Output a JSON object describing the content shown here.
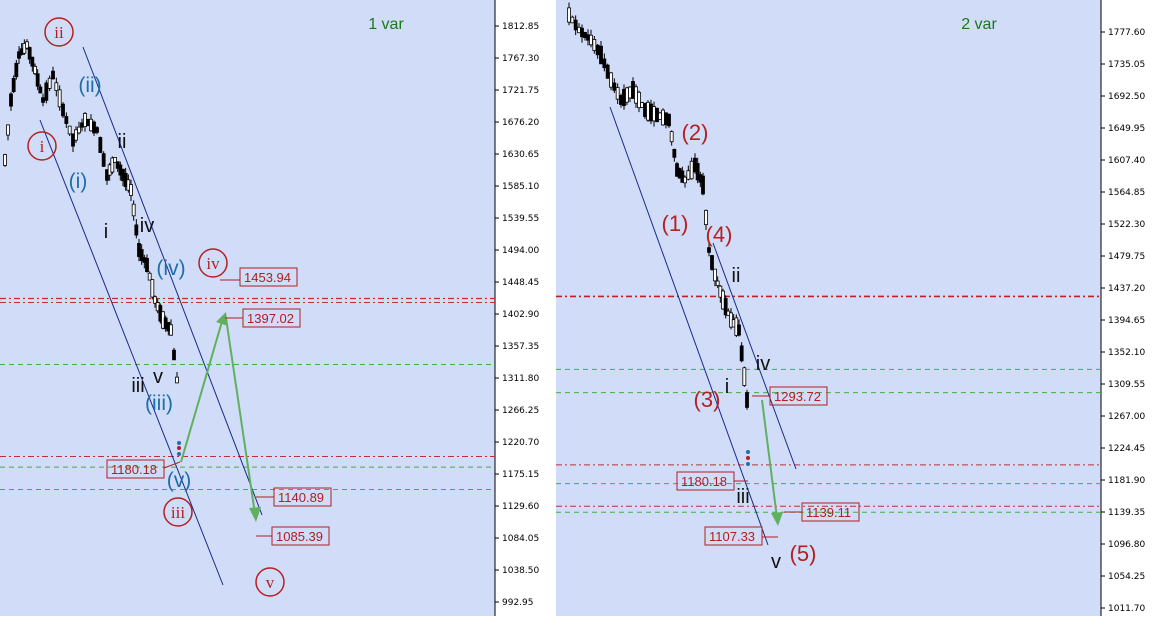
{
  "chart_data": [
    {
      "type": "candlestick",
      "title": "1 var",
      "y_ticks": [
        "1812.85",
        "1767.30",
        "1721.75",
        "1676.20",
        "1630.65",
        "1585.10",
        "1539.55",
        "1494.00",
        "1448.45",
        "1402.90",
        "1357.35",
        "1311.80",
        "1266.25",
        "1220.70",
        "1175.15",
        "1129.60",
        "1084.05",
        "1038.50",
        "992.95"
      ],
      "ylim": [
        966.0,
        1832.0
      ],
      "price_boxes": [
        "1453.94",
        "1397.02",
        "1180.18",
        "1140.89",
        "1085.39"
      ],
      "wave_labels": {
        "circled_red": [
          "ii",
          "i",
          "iii",
          "iv",
          "v"
        ],
        "blue": [
          "(ii)",
          "(i)",
          "(iv)",
          "(iii)",
          "(v)"
        ],
        "black": [
          "ii",
          "i",
          "iv",
          "iii",
          "v"
        ]
      },
      "levels": [
        1425.0,
        1331.0,
        1200.0,
        1185.0,
        1153.0
      ]
    },
    {
      "type": "candlestick",
      "title": "2 var",
      "y_ticks": [
        "1777.60",
        "1735.05",
        "1692.50",
        "1649.95",
        "1607.40",
        "1564.85",
        "1522.30",
        "1479.75",
        "1437.20",
        "1394.65",
        "1352.10",
        "1309.55",
        "1267.00",
        "1224.45",
        "1181.90",
        "1139.35",
        "1096.80",
        "1054.25",
        "1011.70"
      ],
      "ylim": [
        995.0,
        1812.0
      ],
      "price_boxes": [
        "1293.72",
        "1180.18",
        "1139.11",
        "1107.33"
      ],
      "wave_labels": {
        "red": [
          "(2)",
          "(1)",
          "(4)",
          "(3)",
          "(5)"
        ],
        "black": [
          "ii",
          "iv",
          "i",
          "iii",
          "v"
        ]
      },
      "levels": [
        1426.0,
        1329.0,
        1298.0,
        1202.0,
        1177.0,
        1147.0,
        1139.0
      ]
    }
  ]
}
